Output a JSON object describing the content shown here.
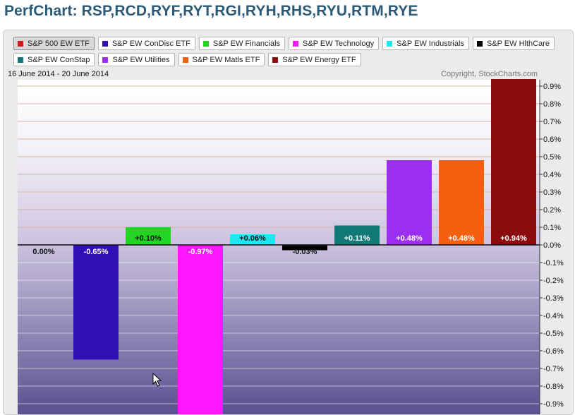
{
  "page": {
    "title": "PerfChart: RSP,RCD,RYF,RYT,RGI,RYH,RHS,RYU,RTM,RYE"
  },
  "chart_info": {
    "date_range": "16 June 2014 - 20 June 2014",
    "copyright": "Copyright, StockCharts.com"
  },
  "legend": {
    "row1": [
      {
        "label": "S&P 500 EW ETF",
        "color": "#cc1f1f",
        "selected": true
      },
      {
        "label": "S&P EW ConDisc ETF",
        "color": "#3010b4"
      },
      {
        "label": "S&P EW Financials",
        "color": "#22d522"
      },
      {
        "label": "S&P EW Technology",
        "color": "#ff15ff"
      },
      {
        "label": "S&P EW Industrials",
        "color": "#1fe7f0"
      },
      {
        "label": "S&P EW HlthCare",
        "color": "#000000"
      }
    ],
    "row2": [
      {
        "label": "S&P EW ConStap",
        "color": "#117a78"
      },
      {
        "label": "S&P EW Utilities",
        "color": "#9b2ef0"
      },
      {
        "label": "S&P EW Matls ETF",
        "color": "#f55f0f"
      },
      {
        "label": "S&P EW Energy ETF",
        "color": "#8b0a0e"
      }
    ]
  },
  "chart_data": {
    "type": "bar",
    "title": "PerfChart: RSP,RCD,RYF,RYT,RGI,RYH,RHS,RYU,RTM,RYE",
    "xlabel": "",
    "ylabel": "",
    "ylim": [
      -0.97,
      0.95
    ],
    "y_ticks": [
      0.9,
      0.8,
      0.7,
      0.6,
      0.5,
      0.4,
      0.3,
      0.2,
      0.1,
      0.0,
      -0.1,
      -0.2,
      -0.3,
      -0.4,
      -0.5,
      -0.6,
      -0.7,
      -0.8,
      -0.9
    ],
    "y_tick_labels": [
      "0.9%",
      "0.8%",
      "0.7%",
      "0.6%",
      "0.5%",
      "0.4%",
      "0.3%",
      "0.2%",
      "0.1%",
      "0.0%",
      "-0.1%",
      "-0.2%",
      "-0.3%",
      "-0.4%",
      "-0.5%",
      "-0.6%",
      "-0.7%",
      "-0.8%",
      "-0.9%"
    ],
    "grid": true,
    "legend_position": "top",
    "series": [
      {
        "name": "S&P 500 EW ETF",
        "value": 0.0,
        "label": "0.00%",
        "color": "#cc1f1f"
      },
      {
        "name": "S&P EW ConDisc ETF",
        "value": -0.65,
        "label": "-0.65%",
        "color": "#3010b4"
      },
      {
        "name": "S&P EW Financials",
        "value": 0.1,
        "label": "+0.10%",
        "color": "#22d522"
      },
      {
        "name": "S&P EW Technology",
        "value": -0.97,
        "label": "-0.97%",
        "color": "#ff15ff"
      },
      {
        "name": "S&P EW Industrials",
        "value": 0.06,
        "label": "+0.06%",
        "color": "#1fe7f0"
      },
      {
        "name": "S&P EW HlthCare",
        "value": -0.03,
        "label": "-0.03%",
        "color": "#000000"
      },
      {
        "name": "S&P EW ConStap",
        "value": 0.11,
        "label": "+0.11%",
        "color": "#117a78"
      },
      {
        "name": "S&P EW Utilities",
        "value": 0.48,
        "label": "+0.48%",
        "color": "#9b2ef0"
      },
      {
        "name": "S&P EW Matls ETF",
        "value": 0.48,
        "label": "+0.48%",
        "color": "#f55f0f"
      },
      {
        "name": "S&P EW Energy ETF",
        "value": 0.94,
        "label": "+0.94%",
        "color": "#8b0a0e"
      }
    ]
  }
}
